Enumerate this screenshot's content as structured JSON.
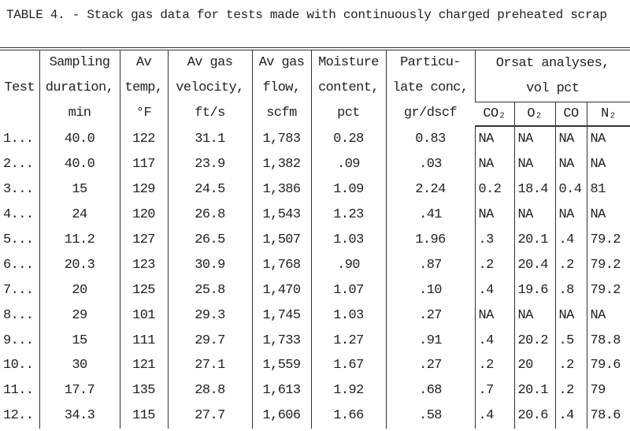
{
  "title": "TABLE 4. - Stack gas data for tests made with continuously charged preheated scrap",
  "table": {
    "columns": [
      "Test",
      "Sampling\nduration,\nmin",
      "Av\ntemp,\n°F",
      "Av gas\nvelocity,\nft/s",
      "Av gas\nflow,\nscfm",
      "Moisture\ncontent,\npct",
      "Particu-\nlate conc,\ngr/dscf"
    ],
    "group": "Orsat analyses,\nvol pct",
    "subcolumns": [
      "CO₂",
      "O₂",
      "CO",
      "N₂"
    ],
    "rows": [
      [
        "1...",
        "40.0",
        "122",
        "31.1",
        "1,783",
        "0.28",
        "0.83",
        "NA",
        "NA",
        "NA",
        "NA"
      ],
      [
        "2...",
        "40.0",
        "117",
        "23.9",
        "1,382",
        ".09",
        ".03",
        "NA",
        "NA",
        "NA",
        "NA"
      ],
      [
        "3...",
        "15",
        "129",
        "24.5",
        "1,386",
        "1.09",
        "2.24",
        "0.2",
        "18.4",
        "0.4",
        "81"
      ],
      [
        "4...",
        "24",
        "120",
        "26.8",
        "1,543",
        "1.23",
        ".41",
        "NA",
        "NA",
        "NA",
        "NA"
      ],
      [
        "5...",
        "11.2",
        "127",
        "26.5",
        "1,507",
        "1.03",
        "1.96",
        ".3",
        "20.1",
        ".4",
        "79.2"
      ],
      [
        "6...",
        "20.3",
        "123",
        "30.9",
        "1,768",
        ".90",
        ".87",
        ".2",
        "20.4",
        ".2",
        "79.2"
      ],
      [
        "7...",
        "20",
        "125",
        "25.8",
        "1,470",
        "1.07",
        ".10",
        ".4",
        "19.6",
        ".8",
        "79.2"
      ],
      [
        "8...",
        "29",
        "101",
        "29.3",
        "1,745",
        "1.03",
        ".27",
        "NA",
        "NA",
        "NA",
        "NA"
      ],
      [
        "9...",
        "15",
        "111",
        "29.7",
        "1,733",
        "1.27",
        ".91",
        ".4",
        "20.2",
        ".5",
        "78.8"
      ],
      [
        "10..",
        "30",
        "121",
        "27.1",
        "1,559",
        "1.67",
        ".27",
        ".2",
        "20",
        ".2",
        "79.6"
      ],
      [
        "11..",
        "17.7",
        "135",
        "28.8",
        "1,613",
        "1.92",
        ".68",
        ".7",
        "20.1",
        ".2",
        "79"
      ],
      [
        "12..",
        "34.3",
        "115",
        "27.7",
        "1,606",
        "1.66",
        ".58",
        ".4",
        "20.6",
        ".4",
        "78.6"
      ]
    ]
  }
}
